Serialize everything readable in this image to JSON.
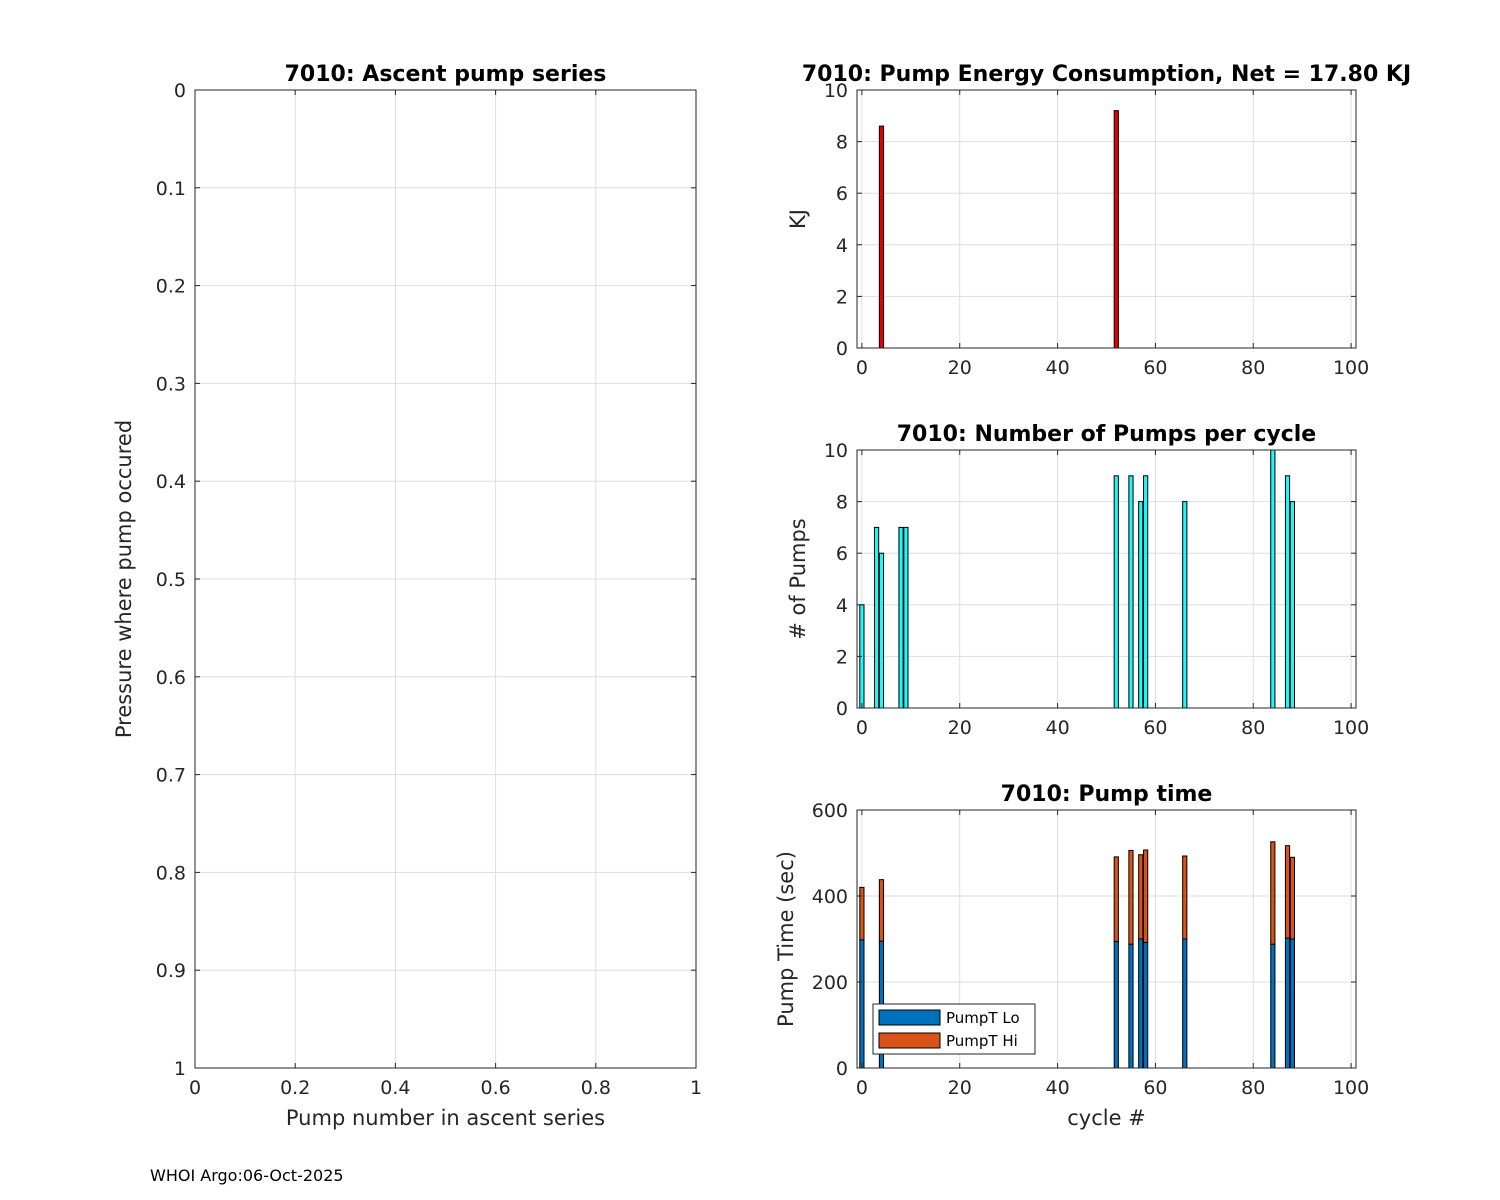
{
  "footer": "WHOI Argo:06-Oct-2025",
  "chart_data": [
    {
      "id": "ascent",
      "type": "scatter",
      "title": "7010: Ascent pump series",
      "xlabel": "Pump number in ascent series",
      "ylabel": "Pressure where pump occured",
      "xlim": [
        0,
        1
      ],
      "ylim": [
        0,
        1
      ],
      "y_reversed": true,
      "xticks": [
        0,
        0.2,
        0.4,
        0.6,
        0.8,
        1
      ],
      "xticklabels": [
        "0",
        "0.2",
        "0.4",
        "0.6",
        "0.8",
        "1"
      ],
      "yticks": [
        0,
        0.1,
        0.2,
        0.3,
        0.4,
        0.5,
        0.6,
        0.7,
        0.8,
        0.9,
        1
      ],
      "yticklabels": [
        "0",
        "0.1",
        "0.2",
        "0.3",
        "0.4",
        "0.5",
        "0.6",
        "0.7",
        "0.8",
        "0.9",
        "1"
      ],
      "grid": true,
      "points": []
    },
    {
      "id": "energy",
      "type": "bar",
      "title": "7010: Pump Energy Consumption,  Net =  17.80 KJ",
      "xlabel": "",
      "ylabel": "KJ",
      "xlim": [
        -1,
        101
      ],
      "ylim": [
        0,
        10
      ],
      "xticks": [
        0,
        20,
        40,
        60,
        80,
        100
      ],
      "xticklabels": [
        "0",
        "20",
        "40",
        "60",
        "80",
        "100"
      ],
      "yticks": [
        0,
        2,
        4,
        6,
        8,
        10
      ],
      "yticklabels": [
        "0",
        "2",
        "4",
        "6",
        "8",
        "10"
      ],
      "grid": true,
      "color": "#e60000",
      "x": [
        4,
        52
      ],
      "values": [
        8.6,
        9.2
      ]
    },
    {
      "id": "numpumps",
      "type": "bar",
      "title": "7010: Number of Pumps per cycle",
      "xlabel": "",
      "ylabel": "# of Pumps",
      "xlim": [
        -1,
        101
      ],
      "ylim": [
        0,
        10
      ],
      "xticks": [
        0,
        20,
        40,
        60,
        80,
        100
      ],
      "xticklabels": [
        "0",
        "20",
        "40",
        "60",
        "80",
        "100"
      ],
      "yticks": [
        0,
        2,
        4,
        6,
        8,
        10
      ],
      "yticklabels": [
        "0",
        "2",
        "4",
        "6",
        "8",
        "10"
      ],
      "grid": true,
      "color": "#1ff7f7",
      "x": [
        0,
        3,
        4,
        8,
        9,
        52,
        55,
        57,
        58,
        66,
        84,
        87,
        88
      ],
      "values": [
        4,
        7,
        6,
        7,
        7,
        9,
        9,
        8,
        9,
        8,
        10,
        9,
        8
      ]
    },
    {
      "id": "pumptime",
      "type": "stacked-bar",
      "title": "7010: Pump time",
      "xlabel": "cycle #",
      "ylabel": "Pump Time (sec)",
      "xlim": [
        -1,
        101
      ],
      "ylim": [
        0,
        600
      ],
      "xticks": [
        0,
        20,
        40,
        60,
        80,
        100
      ],
      "xticklabels": [
        "0",
        "20",
        "40",
        "60",
        "80",
        "100"
      ],
      "yticks": [
        0,
        200,
        400,
        600
      ],
      "yticklabels": [
        "0",
        "200",
        "400",
        "600"
      ],
      "grid": true,
      "legend_position": "bottom-left",
      "x": [
        0,
        4,
        52,
        55,
        57,
        58,
        66,
        84,
        87,
        88
      ],
      "series": [
        {
          "name": "PumpT Lo",
          "color": "#0072bd",
          "values": [
            298,
            295,
            294,
            288,
            300,
            292,
            300,
            288,
            302,
            300
          ]
        },
        {
          "name": "PumpT Hi",
          "color": "#d95319",
          "values": [
            122,
            143,
            197,
            218,
            196,
            215,
            193,
            238,
            215,
            190
          ]
        }
      ]
    }
  ]
}
